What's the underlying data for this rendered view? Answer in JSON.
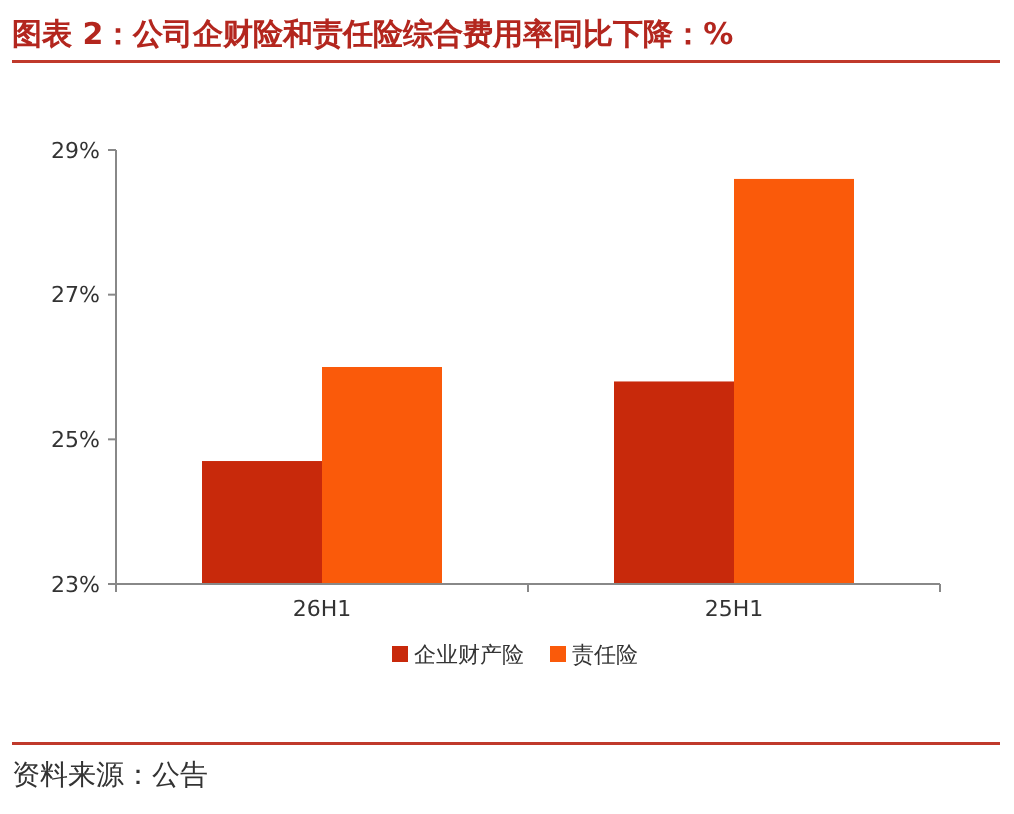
{
  "chart_data": {
    "type": "bar",
    "title": "图表 2：公司企财险和责任险综合费用率同比下降：%",
    "categories": [
      "26H1",
      "25H1"
    ],
    "series": [
      {
        "name": "企业财产险",
        "color": "#c8290b",
        "values": [
          24.7,
          25.8
        ]
      },
      {
        "name": "责任险",
        "color": "#fa5a0a",
        "values": [
          26.0,
          28.6
        ]
      }
    ],
    "ylim": [
      23,
      29
    ],
    "yticks": [
      {
        "value": 23,
        "label": "23%"
      },
      {
        "value": 25,
        "label": "25%"
      },
      {
        "value": 27,
        "label": "27%"
      },
      {
        "value": 29,
        "label": "29%"
      }
    ],
    "grid": false,
    "legend": "bottom",
    "annotations": [
      "资料来源：公告"
    ]
  }
}
